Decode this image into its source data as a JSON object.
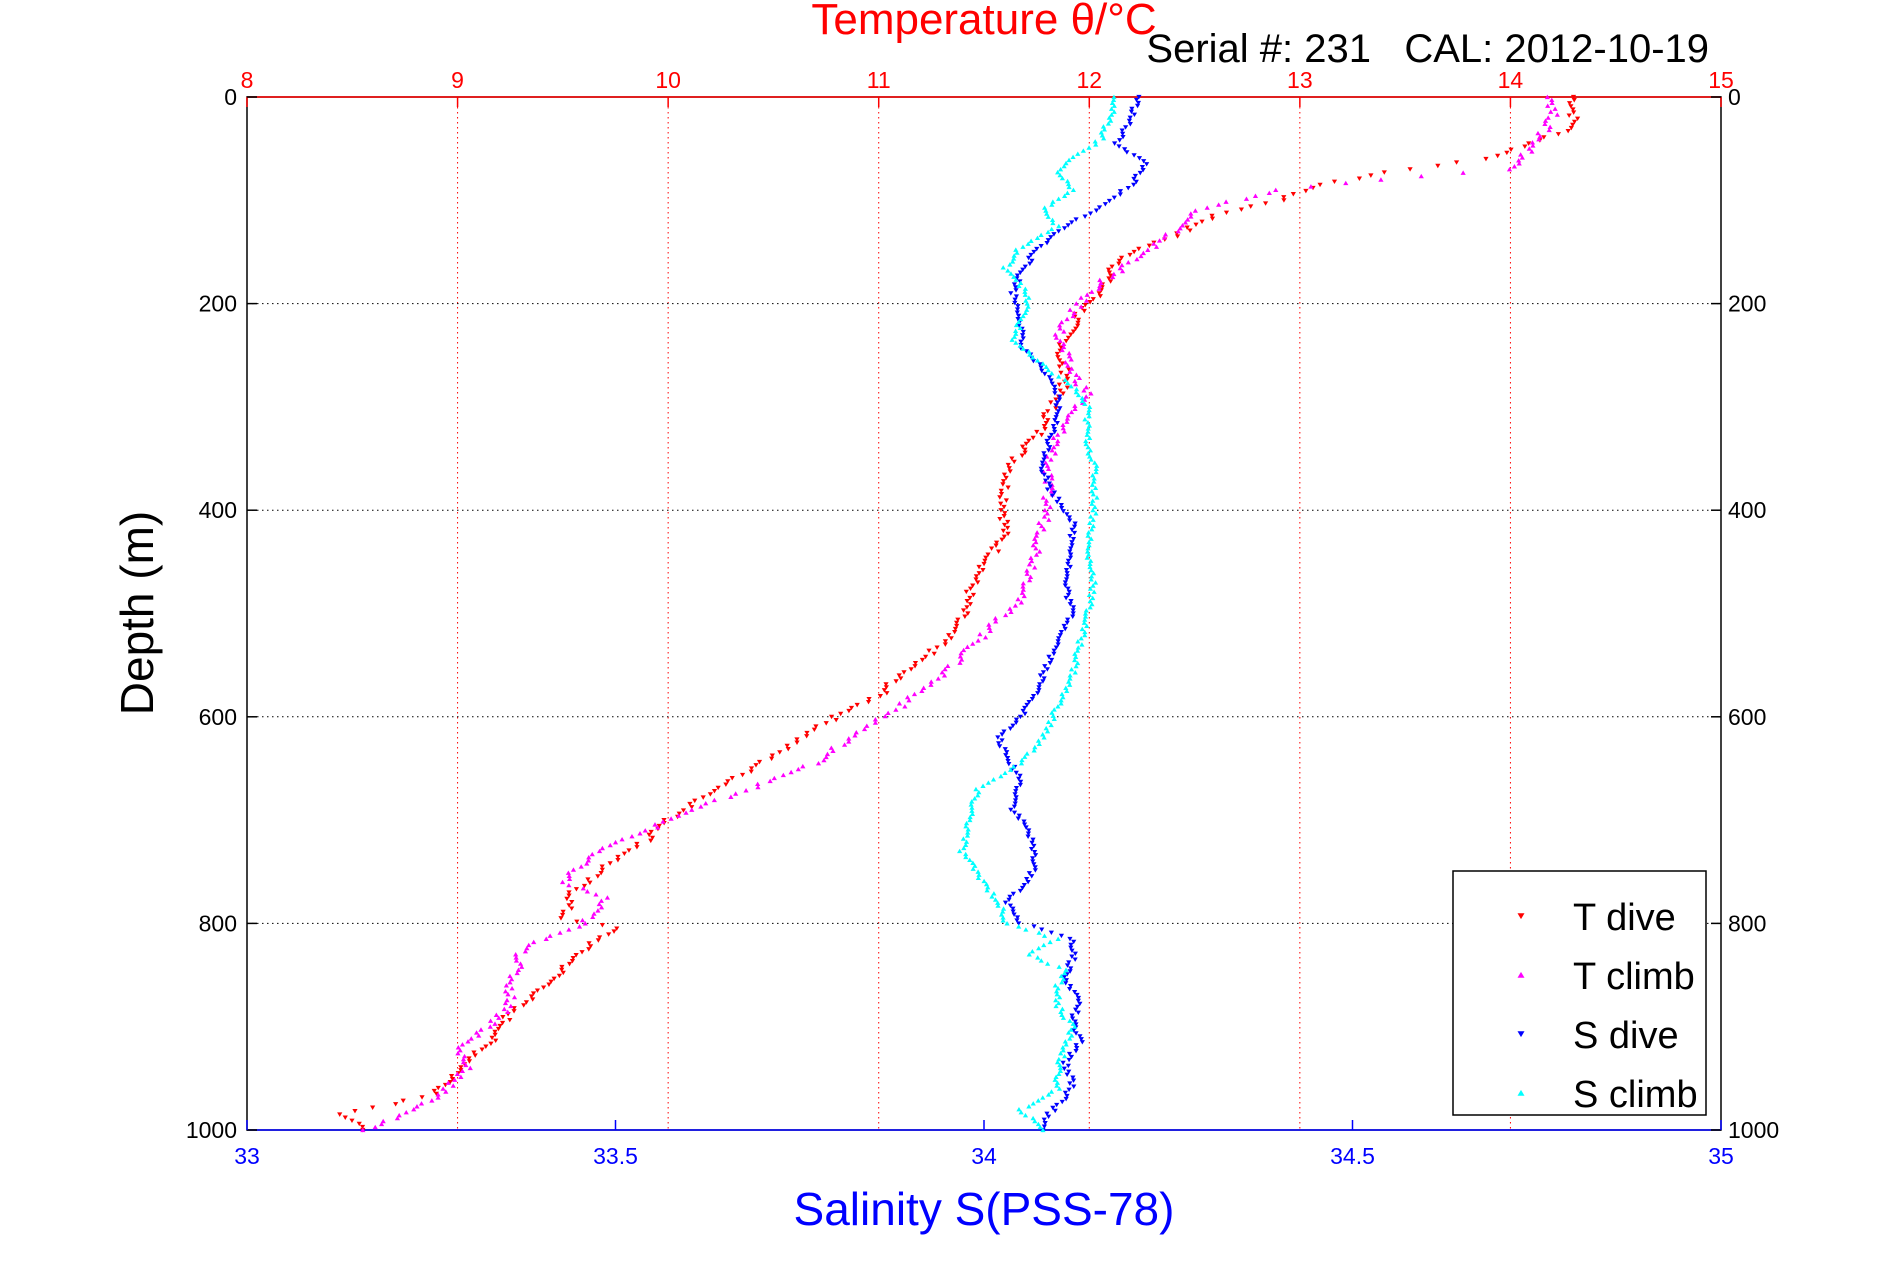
{
  "chart_data": {
    "type": "scatter",
    "title": "Temperature θ/°C",
    "subtitle": "Serial #: 231   CAL: 2012-10-19",
    "ylabel": "Depth (m)",
    "xlabel": "Salinity S(PSS-78)",
    "x_top": {
      "label": "Temperature θ/°C",
      "range": [
        8,
        15
      ],
      "ticks": [
        8,
        9,
        10,
        11,
        12,
        13,
        14,
        15
      ],
      "color": "#ff0000"
    },
    "x_bottom": {
      "label": "Salinity S(PSS-78)",
      "range": [
        33,
        35
      ],
      "ticks": [
        "33",
        "33.5",
        "34",
        "34.5",
        "35"
      ],
      "color": "#0000ff"
    },
    "y": {
      "label": "Depth (m)",
      "range": [
        0,
        1000
      ],
      "reversed": true,
      "ticks": [
        0,
        200,
        400,
        600,
        800,
        1000
      ]
    },
    "grid": true,
    "legend": {
      "placement": "bottom-right"
    },
    "series": [
      {
        "name": "T dive",
        "axis": "temperature",
        "color": "#ff0000",
        "marker": "triangle-down",
        "points": [
          [
            14.3,
            0
          ],
          [
            14.3,
            15
          ],
          [
            14.3,
            30
          ],
          [
            14.1,
            45
          ],
          [
            13.9,
            60
          ],
          [
            13.5,
            70
          ],
          [
            13.1,
            85
          ],
          [
            12.9,
            100
          ],
          [
            12.6,
            115
          ],
          [
            12.4,
            135
          ],
          [
            12.2,
            150
          ],
          [
            12.1,
            170
          ],
          [
            12.05,
            190
          ],
          [
            11.95,
            210
          ],
          [
            11.9,
            230
          ],
          [
            11.85,
            255
          ],
          [
            11.9,
            270
          ],
          [
            11.85,
            290
          ],
          [
            11.8,
            310
          ],
          [
            11.75,
            330
          ],
          [
            11.65,
            350
          ],
          [
            11.6,
            375
          ],
          [
            11.6,
            400
          ],
          [
            11.6,
            420
          ],
          [
            11.55,
            440
          ],
          [
            11.45,
            470
          ],
          [
            11.4,
            500
          ],
          [
            11.3,
            530
          ],
          [
            11.1,
            560
          ],
          [
            11.0,
            580
          ],
          [
            10.8,
            600
          ],
          [
            10.6,
            625
          ],
          [
            10.4,
            650
          ],
          [
            10.2,
            675
          ],
          [
            10.0,
            700
          ],
          [
            9.9,
            720
          ],
          [
            9.7,
            745
          ],
          [
            9.55,
            770
          ],
          [
            9.5,
            795
          ],
          [
            9.75,
            805
          ],
          [
            9.6,
            825
          ],
          [
            9.5,
            845
          ],
          [
            9.4,
            865
          ],
          [
            9.25,
            885
          ],
          [
            9.2,
            905
          ],
          [
            9.1,
            925
          ],
          [
            9.0,
            945
          ],
          [
            8.9,
            965
          ],
          [
            8.7,
            975
          ],
          [
            8.45,
            985
          ],
          [
            8.55,
            1000
          ]
        ]
      },
      {
        "name": "T climb",
        "axis": "temperature",
        "color": "#ff00ff",
        "marker": "triangle-up",
        "points": [
          [
            14.2,
            0
          ],
          [
            14.2,
            20
          ],
          [
            14.1,
            50
          ],
          [
            14.0,
            70
          ],
          [
            13.4,
            80
          ],
          [
            12.9,
            90
          ],
          [
            12.5,
            110
          ],
          [
            12.4,
            130
          ],
          [
            12.2,
            160
          ],
          [
            12.05,
            180
          ],
          [
            11.95,
            200
          ],
          [
            11.85,
            230
          ],
          [
            11.9,
            260
          ],
          [
            12.0,
            290
          ],
          [
            11.9,
            305
          ],
          [
            11.85,
            330
          ],
          [
            11.8,
            360
          ],
          [
            11.8,
            400
          ],
          [
            11.75,
            440
          ],
          [
            11.7,
            480
          ],
          [
            11.5,
            520
          ],
          [
            11.3,
            560
          ],
          [
            11.1,
            590
          ],
          [
            10.9,
            615
          ],
          [
            10.7,
            645
          ],
          [
            10.45,
            665
          ],
          [
            10.1,
            690
          ],
          [
            9.9,
            710
          ],
          [
            9.65,
            730
          ],
          [
            9.5,
            760
          ],
          [
            9.7,
            775
          ],
          [
            9.6,
            800
          ],
          [
            9.4,
            815
          ],
          [
            9.3,
            830
          ],
          [
            9.25,
            860
          ],
          [
            9.25,
            880
          ],
          [
            9.15,
            900
          ],
          [
            9.0,
            920
          ],
          [
            9.05,
            940
          ],
          [
            8.95,
            960
          ],
          [
            8.8,
            980
          ],
          [
            8.55,
            1000
          ]
        ]
      },
      {
        "name": "S dive",
        "axis": "salinity",
        "color": "#0000ff",
        "marker": "triangle-down",
        "points": [
          [
            34.21,
            0
          ],
          [
            34.2,
            20
          ],
          [
            34.18,
            45
          ],
          [
            34.22,
            65
          ],
          [
            34.2,
            85
          ],
          [
            34.15,
            110
          ],
          [
            34.1,
            130
          ],
          [
            34.07,
            150
          ],
          [
            34.05,
            170
          ],
          [
            34.04,
            190
          ],
          [
            34.05,
            215
          ],
          [
            34.05,
            240
          ],
          [
            34.08,
            265
          ],
          [
            34.1,
            290
          ],
          [
            34.1,
            310
          ],
          [
            34.09,
            330
          ],
          [
            34.08,
            360
          ],
          [
            34.09,
            380
          ],
          [
            34.12,
            410
          ],
          [
            34.12,
            440
          ],
          [
            34.11,
            470
          ],
          [
            34.12,
            500
          ],
          [
            34.1,
            530
          ],
          [
            34.08,
            560
          ],
          [
            34.07,
            580
          ],
          [
            34.05,
            600
          ],
          [
            34.02,
            620
          ],
          [
            34.03,
            640
          ],
          [
            34.05,
            660
          ],
          [
            34.04,
            690
          ],
          [
            34.06,
            710
          ],
          [
            34.07,
            740
          ],
          [
            34.06,
            760
          ],
          [
            34.03,
            780
          ],
          [
            34.05,
            800
          ],
          [
            34.12,
            815
          ],
          [
            34.12,
            835
          ],
          [
            34.11,
            855
          ],
          [
            34.13,
            875
          ],
          [
            34.12,
            895
          ],
          [
            34.13,
            915
          ],
          [
            34.11,
            935
          ],
          [
            34.12,
            955
          ],
          [
            34.11,
            970
          ],
          [
            34.08,
            990
          ],
          [
            34.08,
            1000
          ]
        ]
      },
      {
        "name": "S climb",
        "axis": "salinity",
        "color": "#00ffff",
        "marker": "triangle-up",
        "points": [
          [
            34.18,
            0
          ],
          [
            34.17,
            20
          ],
          [
            34.16,
            40
          ],
          [
            34.1,
            70
          ],
          [
            34.12,
            90
          ],
          [
            34.08,
            110
          ],
          [
            34.1,
            125
          ],
          [
            34.05,
            145
          ],
          [
            34.03,
            165
          ],
          [
            34.05,
            180
          ],
          [
            34.06,
            200
          ],
          [
            34.05,
            215
          ],
          [
            34.04,
            235
          ],
          [
            34.07,
            255
          ],
          [
            34.12,
            280
          ],
          [
            34.14,
            300
          ],
          [
            34.14,
            330
          ],
          [
            34.15,
            360
          ],
          [
            34.15,
            400
          ],
          [
            34.14,
            440
          ],
          [
            34.15,
            470
          ],
          [
            34.14,
            500
          ],
          [
            34.13,
            530
          ],
          [
            34.12,
            560
          ],
          [
            34.1,
            590
          ],
          [
            34.08,
            620
          ],
          [
            34.05,
            645
          ],
          [
            33.99,
            670
          ],
          [
            33.98,
            700
          ],
          [
            33.97,
            730
          ],
          [
            33.99,
            750
          ],
          [
            34.02,
            780
          ],
          [
            34.03,
            800
          ],
          [
            34.1,
            815
          ],
          [
            34.06,
            830
          ],
          [
            34.11,
            845
          ],
          [
            34.1,
            860
          ],
          [
            34.1,
            880
          ],
          [
            34.12,
            900
          ],
          [
            34.11,
            920
          ],
          [
            34.1,
            940
          ],
          [
            34.1,
            960
          ],
          [
            34.05,
            980
          ],
          [
            34.08,
            1000
          ]
        ]
      }
    ]
  }
}
